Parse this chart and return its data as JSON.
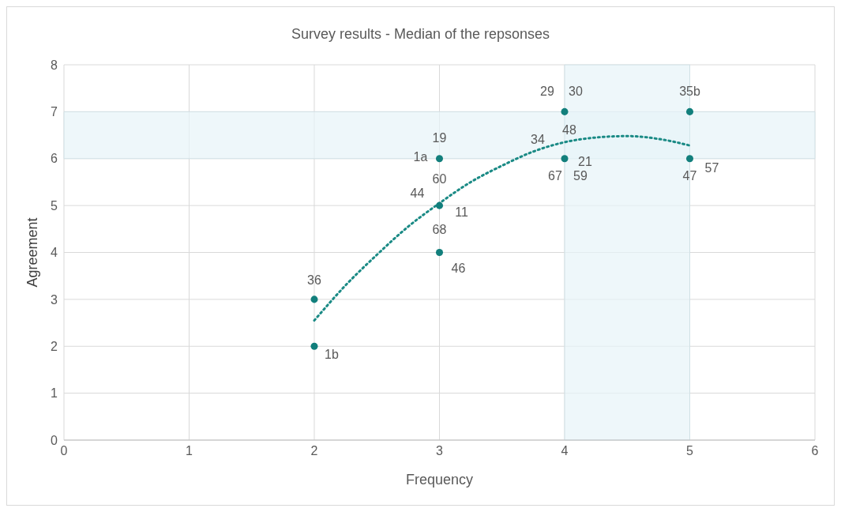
{
  "chart_data": {
    "type": "scatter",
    "title": "Survey results - Median of the repsonses",
    "xlabel": "Frequency",
    "ylabel": "Agreement",
    "series": [
      {
        "color": "#127f7c",
        "x": [
          2,
          2,
          3,
          3,
          3,
          4,
          4,
          5,
          5
        ],
        "values": [
          3,
          2,
          6,
          5,
          4,
          7,
          6,
          7,
          6
        ]
      },
      {
        "type": "line",
        "color": "#1a8a85",
        "line_style": "dotted",
        "marker": "none",
        "x": [
          2,
          2.25,
          2.5,
          2.75,
          3,
          3.25,
          3.5,
          3.75,
          4,
          4.25,
          4.5,
          4.75,
          5
        ],
        "values": [
          2.55,
          3.3,
          3.95,
          4.55,
          5.05,
          5.5,
          5.85,
          6.15,
          6.35,
          6.45,
          6.48,
          6.42,
          6.28
        ]
      }
    ],
    "xlim": [
      0,
      6
    ],
    "xticks": [
      0,
      1,
      2,
      3,
      4,
      5,
      6
    ],
    "ylim": [
      0,
      8
    ],
    "yticks": [
      0,
      1,
      2,
      3,
      4,
      5,
      6,
      7,
      8
    ],
    "grid": true,
    "marker": "circle",
    "bands": [
      {
        "axis": "y",
        "from": 6,
        "to": 7,
        "color": "#e7f3f8"
      },
      {
        "axis": "x",
        "from": 4,
        "to": 5,
        "color": "#e7f3f8"
      }
    ],
    "annotations": [
      {
        "text": "36",
        "x": 2,
        "y": 3
      },
      {
        "text": "1b",
        "x": 2,
        "y": 2
      },
      {
        "text": "19",
        "x": 3,
        "y": 6
      },
      {
        "text": "1a",
        "x": 3,
        "y": 6
      },
      {
        "text": "60",
        "x": 3,
        "y": 5
      },
      {
        "text": "44",
        "x": 3,
        "y": 5
      },
      {
        "text": "11",
        "x": 3,
        "y": 5
      },
      {
        "text": "68",
        "x": 3,
        "y": 5
      },
      {
        "text": "46",
        "x": 3,
        "y": 4
      },
      {
        "text": "29",
        "x": 4,
        "y": 7
      },
      {
        "text": "30",
        "x": 4,
        "y": 7
      },
      {
        "text": "48",
        "x": 4,
        "y": 6
      },
      {
        "text": "34",
        "x": 4,
        "y": 6
      },
      {
        "text": "21",
        "x": 4,
        "y": 6
      },
      {
        "text": "67",
        "x": 4,
        "y": 6
      },
      {
        "text": "59",
        "x": 4,
        "y": 6
      },
      {
        "text": "35b",
        "x": 5,
        "y": 7
      },
      {
        "text": "47",
        "x": 5,
        "y": 6
      },
      {
        "text": "57",
        "x": 5,
        "y": 6
      }
    ]
  }
}
